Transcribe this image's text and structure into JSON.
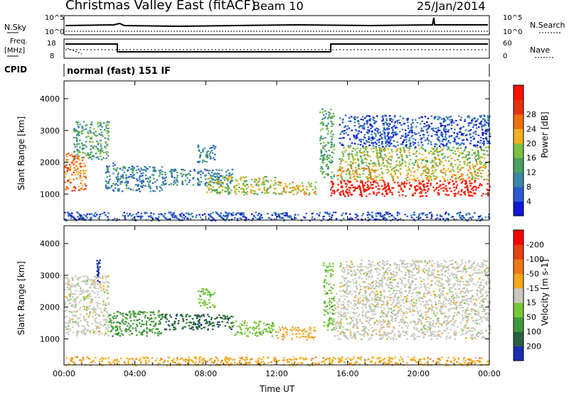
{
  "header": {
    "title": "Christmas Valley East (fitACF)",
    "beam": "Beam 10",
    "date": "25/Jan/2014"
  },
  "panels": {
    "sky": {
      "left_label": "N.Sky",
      "right_label": "N.Search",
      "ticks": [
        "10^5",
        "10^0"
      ]
    },
    "freq": {
      "left_label_1": "Freq.",
      "left_label_2": "[MHz]",
      "right_label": "Nave",
      "left_ticks": [
        "18",
        "8"
      ],
      "right_ticks": [
        "60",
        "0"
      ]
    },
    "cpid": {
      "label": "CPID",
      "mode": "normal (fast) 151 IF"
    }
  },
  "x_axis": {
    "label": "Time UT",
    "ticks": [
      "00:00",
      "04:00",
      "08:00",
      "12:00",
      "16:00",
      "20:00",
      "00:00"
    ]
  },
  "chart_data": [
    {
      "type": "heatmap",
      "name": "power",
      "ylabel": "Slant Range [km]",
      "yticks": [
        "1000",
        "2000",
        "3000",
        "4000"
      ],
      "ylim": [
        180,
        4560
      ],
      "xlim_hours": [
        0,
        24
      ],
      "colorbar": {
        "label": "Power [dB]",
        "ticks": [
          "4",
          "8",
          "12",
          "16",
          "20",
          "24",
          "28"
        ],
        "colors": [
          "#1018d8",
          "#2a5bd0",
          "#3a88a8",
          "#4aa060",
          "#7bc040",
          "#f0b020",
          "#f07010",
          "#e83010",
          "#ff1000"
        ]
      },
      "echo_regions": [
        {
          "start": 0.0,
          "end": 1.2,
          "range_lo": 1100,
          "range_hi": 2300,
          "level": 6
        },
        {
          "start": 0.5,
          "end": 2.5,
          "range_lo": 2100,
          "range_hi": 3300,
          "level": 3
        },
        {
          "start": 2.3,
          "end": 3.2,
          "range_lo": 1100,
          "range_hi": 2000,
          "level": 2
        },
        {
          "start": 3.2,
          "end": 5.5,
          "range_lo": 1100,
          "range_hi": 1900,
          "level": 2
        },
        {
          "start": 5.5,
          "end": 9.5,
          "range_lo": 1300,
          "range_hi": 1800,
          "level": 2
        },
        {
          "start": 7.5,
          "end": 8.5,
          "range_lo": 2000,
          "range_hi": 2600,
          "level": 2
        },
        {
          "start": 8.0,
          "end": 12.0,
          "range_lo": 1000,
          "range_hi": 1600,
          "level": 4
        },
        {
          "start": 12.0,
          "end": 14.2,
          "range_lo": 1000,
          "range_hi": 1400,
          "level": 5
        },
        {
          "start": 14.4,
          "end": 15.2,
          "range_lo": 1500,
          "range_hi": 3700,
          "level": 3
        },
        {
          "start": 15.0,
          "end": 24.0,
          "range_lo": 950,
          "range_hi": 1450,
          "level": 8
        },
        {
          "start": 15.2,
          "end": 24.0,
          "range_lo": 1450,
          "range_hi": 1900,
          "level": 5
        },
        {
          "start": 15.5,
          "end": 24.0,
          "range_lo": 1900,
          "range_hi": 2500,
          "level": 4
        },
        {
          "start": 15.5,
          "end": 24.0,
          "range_lo": 2500,
          "range_hi": 3500,
          "level": 1
        },
        {
          "start": 0.0,
          "end": 24.0,
          "range_lo": 180,
          "range_hi": 450,
          "level": 1
        }
      ]
    },
    {
      "type": "heatmap",
      "name": "velocity",
      "ylabel": "Slant Range [km]",
      "yticks": [
        "1000",
        "2000",
        "3000",
        "4000"
      ],
      "ylim": [
        180,
        4560
      ],
      "xlim_hours": [
        0,
        24
      ],
      "colorbar": {
        "label": "Velocity [m s-1]",
        "ticks": [
          "200",
          "100",
          "50",
          "15",
          "-15",
          "-50",
          "-100",
          "-200"
        ],
        "colors": [
          "#1a2fb0",
          "#2a6040",
          "#3f9a3a",
          "#78c83a",
          "#c8c8c0",
          "#f4a818",
          "#f07818",
          "#e84010",
          "#ff0000"
        ]
      },
      "echo_regions": [
        {
          "start": 0.0,
          "end": 2.5,
          "range_lo": 1100,
          "range_hi": 3000,
          "color_index": 4
        },
        {
          "start": 1.8,
          "end": 2.0,
          "range_lo": 2800,
          "range_hi": 3500,
          "color_index": 0
        },
        {
          "start": 2.5,
          "end": 5.5,
          "range_lo": 1100,
          "range_hi": 1900,
          "color_index": 2
        },
        {
          "start": 5.5,
          "end": 9.5,
          "range_lo": 1300,
          "range_hi": 1800,
          "color_index": 1
        },
        {
          "start": 7.5,
          "end": 8.5,
          "range_lo": 2000,
          "range_hi": 2600,
          "color_index": 3
        },
        {
          "start": 9.5,
          "end": 12.0,
          "range_lo": 1100,
          "range_hi": 1600,
          "color_index": 3
        },
        {
          "start": 12.0,
          "end": 14.2,
          "range_lo": 1000,
          "range_hi": 1400,
          "color_index": 5
        },
        {
          "start": 14.6,
          "end": 15.2,
          "range_lo": 1300,
          "range_hi": 3500,
          "color_index": 3
        },
        {
          "start": 15.2,
          "end": 24.0,
          "range_lo": 1000,
          "range_hi": 2500,
          "color_index": 4
        },
        {
          "start": 15.5,
          "end": 24.0,
          "range_lo": 2500,
          "range_hi": 3500,
          "color_index": 4
        },
        {
          "start": 0.0,
          "end": 24.0,
          "range_lo": 180,
          "range_hi": 450,
          "color_index": 5
        }
      ]
    }
  ]
}
